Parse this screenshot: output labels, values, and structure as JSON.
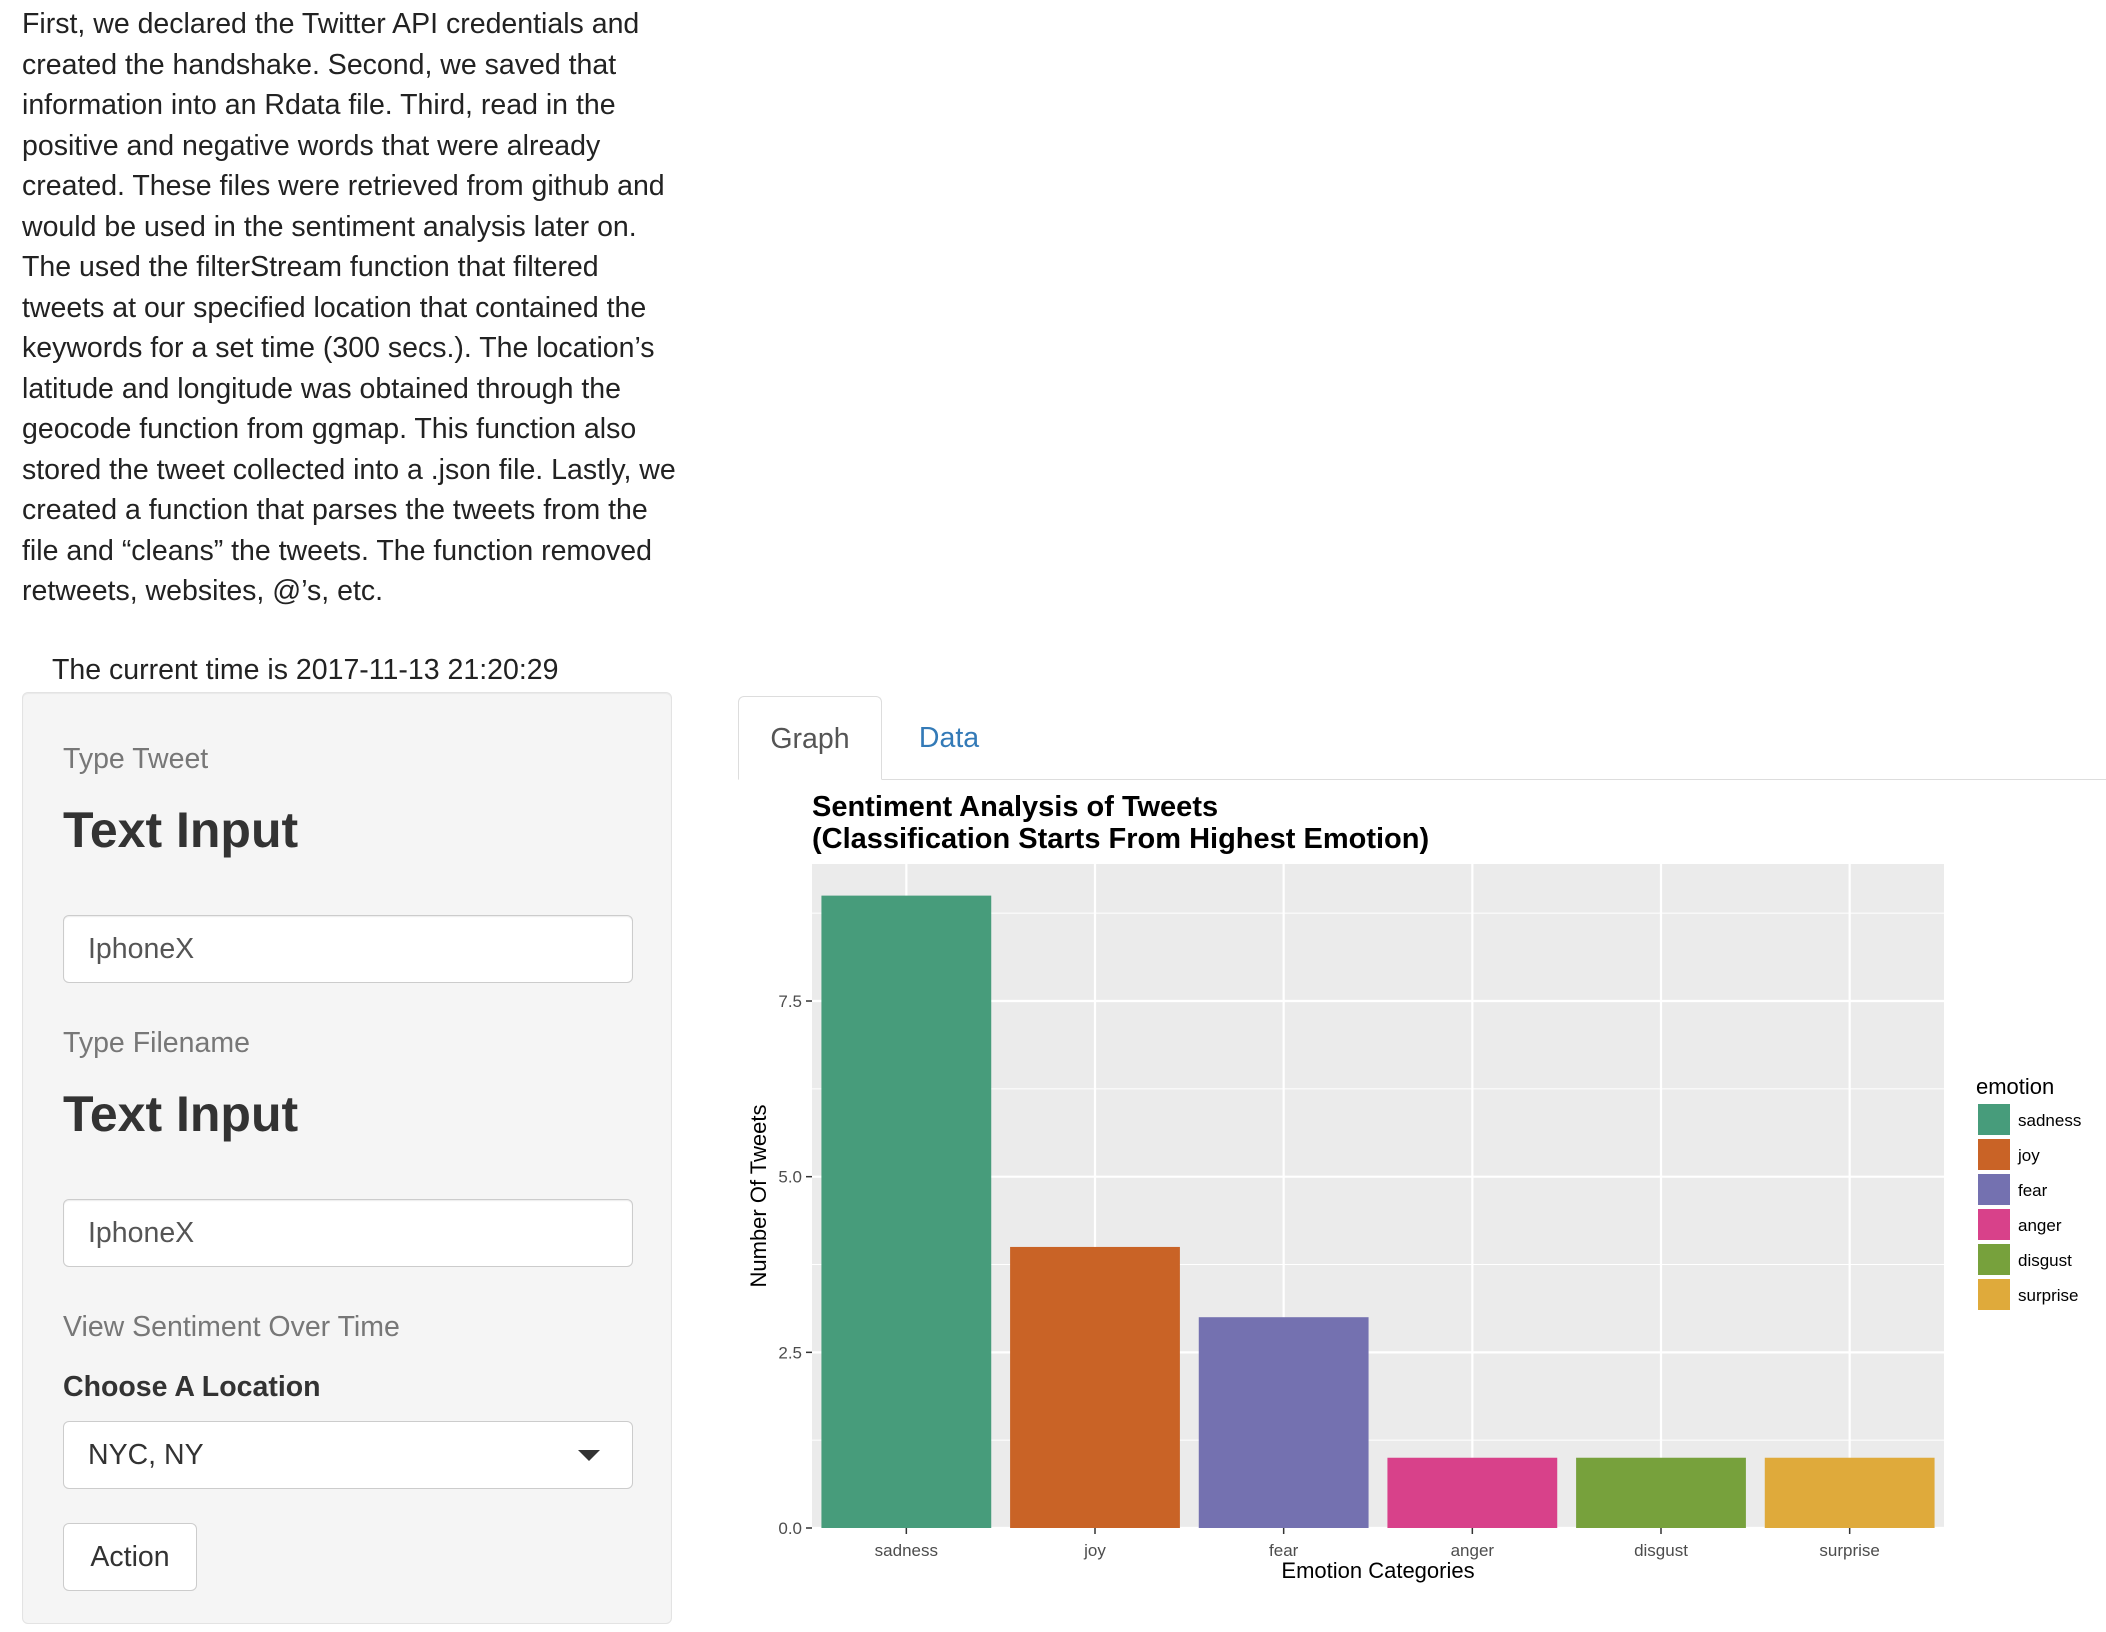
{
  "intro": {
    "text": "First, we declared the Twitter API credentials and created the handshake. Second, we saved that information into an Rdata file. Third, read in the positive and negative words that were already created. These files were retrieved from github and would be used in the sentiment analysis later on. The used the filterStream function that filtered tweets at our specified location that contained the keywords for a set time (300 secs.). The location’s latitude and longitude was obtained through the geocode function from ggmap. This function also stored the tweet collected into a .json file. Lastly, we created a function that parses the tweets from the file and “cleans” the tweets. The function removed retweets, websites, @’s, etc."
  },
  "current_time": "The current time is 2017-11-13 21:20:29",
  "sidebar": {
    "type_tweet_label": "Type Tweet",
    "tweet_heading": "Text Input",
    "tweet_value": "IphoneX",
    "type_filename_label": "Type Filename",
    "filename_heading": "Text Input",
    "filename_value": "IphoneX",
    "sentiment_over_time_label": "View Sentiment Over Time",
    "location_label": "Choose A Location",
    "location_value": "NYC, NY",
    "action_label": "Action"
  },
  "tabs": [
    {
      "label": "Graph",
      "active": true
    },
    {
      "label": "Data",
      "active": false
    }
  ],
  "colors": {
    "panel_bg": "#ebebeb",
    "grid": "#ffffff",
    "link": "#337ab7"
  },
  "chart_data": {
    "type": "bar",
    "title": "Sentiment Analysis of Tweets",
    "subtitle": "(Classification Starts From Highest Emotion)",
    "xlabel": "Emotion Categories",
    "ylabel": "Number Of Tweets",
    "categories": [
      "sadness",
      "joy",
      "fear",
      "anger",
      "disgust",
      "surprise"
    ],
    "values": [
      9,
      4,
      3,
      1,
      1,
      1
    ],
    "colors": [
      "#479c7b",
      "#c96326",
      "#7471b0",
      "#d8418a",
      "#77a13c",
      "#dfaa3b"
    ],
    "ylim": [
      0,
      9.45
    ],
    "yticks": [
      0,
      2.5,
      5,
      7.5
    ],
    "ytick_labels": [
      "0.0",
      "2.5",
      "5.0",
      "7.5"
    ],
    "grid": true,
    "legend": {
      "title": "emotion",
      "placement": "right",
      "entries": [
        "sadness",
        "joy",
        "fear",
        "anger",
        "disgust",
        "surprise"
      ]
    }
  }
}
